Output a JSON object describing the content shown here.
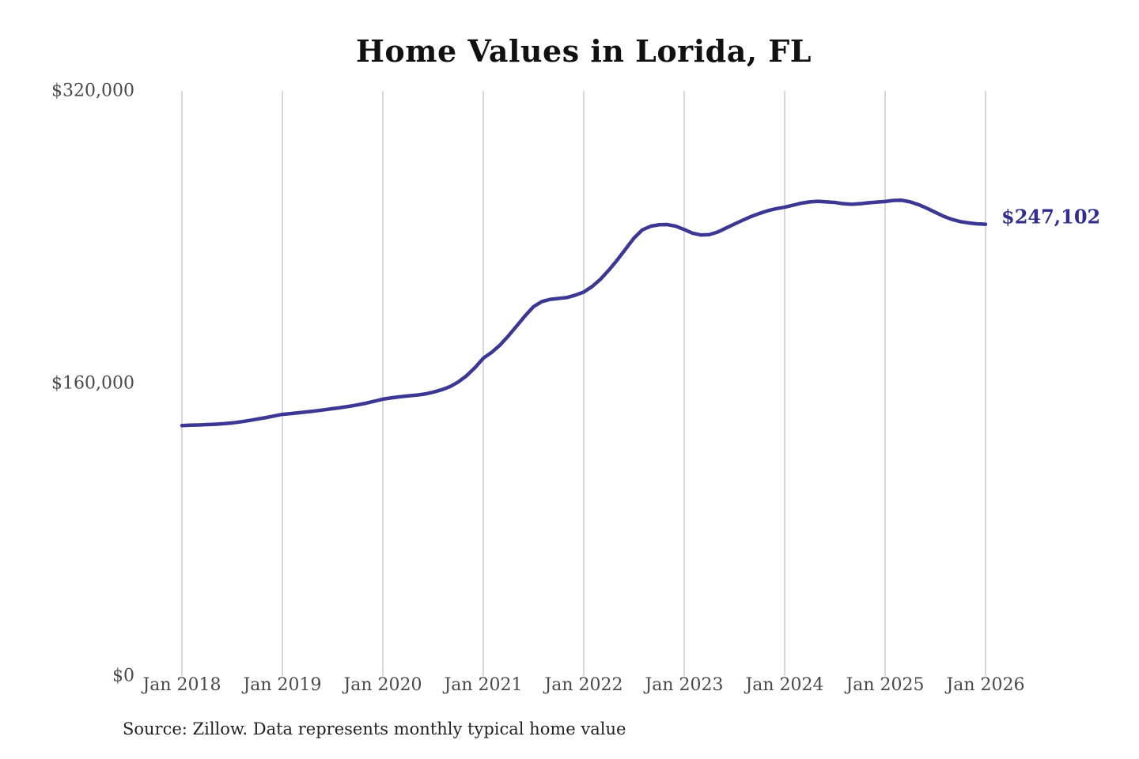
{
  "page": {
    "background": "#ffffff"
  },
  "chart_data": {
    "type": "line",
    "title": "Home Values in Lorida, FL",
    "source_note": "Source: Zillow. Data represents monthly typical home value",
    "end_label": "$247,102",
    "final_value": 247102,
    "ylim": [
      0,
      320000
    ],
    "y_tick_labels": [
      "$0",
      "$160,000",
      "$320,000"
    ],
    "x_tick_labels": [
      "Jan 2018",
      "Jan 2019",
      "Jan 2020",
      "Jan 2021",
      "Jan 2022",
      "Jan 2023",
      "Jan 2024",
      "Jan 2025",
      "Jan 2026"
    ],
    "x_frequency": "monthly",
    "x_range": [
      "Jan 2018",
      "Jan 2026"
    ],
    "grid": "vertical-only",
    "legend": "none",
    "colors": {
      "line": "#3b3795",
      "end_label": "#312e90",
      "gridline": "#cccccc",
      "tick_text": "#4a4a4a",
      "title_text": "#111111"
    },
    "series": [
      {
        "name": "Typical home value",
        "values": [
          137000,
          137200,
          137300,
          137500,
          137700,
          138000,
          138400,
          139000,
          139700,
          140500,
          141300,
          142200,
          143100,
          143500,
          144000,
          144500,
          145000,
          145600,
          146200,
          146800,
          147500,
          148300,
          149200,
          150300,
          151400,
          152100,
          152700,
          153200,
          153600,
          154200,
          155200,
          156500,
          158200,
          160800,
          164200,
          168600,
          173800,
          177000,
          181000,
          186000,
          191500,
          197000,
          202000,
          204800,
          206000,
          206500,
          207000,
          208300,
          210000,
          213000,
          217000,
          222000,
          227500,
          233500,
          239500,
          244000,
          246000,
          246800,
          246900,
          246000,
          244200,
          242200,
          241200,
          241400,
          242800,
          245000,
          247200,
          249300,
          251300,
          253000,
          254500,
          255600,
          256400,
          257500,
          258600,
          259300,
          259600,
          259300,
          259000,
          258300,
          258000,
          258300,
          258800,
          259200,
          259500,
          260100,
          260200,
          259300,
          257800,
          255800,
          253600,
          251400,
          249700,
          248500,
          247800,
          247300,
          247102
        ]
      }
    ]
  }
}
